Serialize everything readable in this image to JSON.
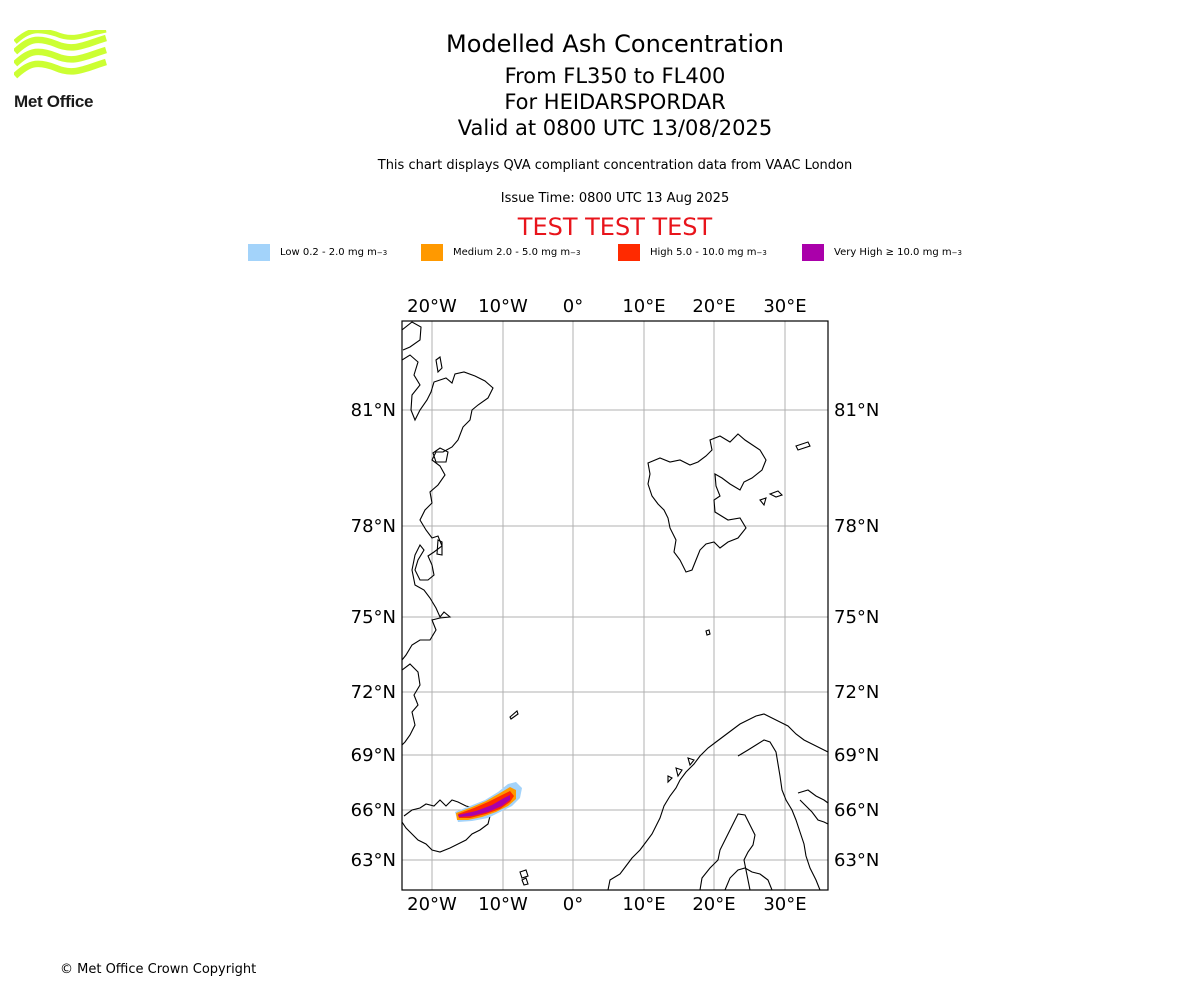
{
  "brand": {
    "name": "Met Office",
    "logo_color": "#ccff33"
  },
  "header": {
    "title": "Modelled Ash Concentration",
    "flight_levels": "From FL350 to FL400",
    "volcano": "For HEIDARSPORDAR",
    "valid": "Valid at 0800 UTC 13/08/2025",
    "description": "This chart displays QVA compliant concentration data from VAAC London",
    "issue_time": "Issue Time: 0800 UTC 13 Aug 2025",
    "test_banner": "TEST TEST TEST"
  },
  "legend": [
    {
      "label": "Low 0.2 - 2.0 mg m",
      "unit_sup": "−3",
      "color": "#a3d3fa"
    },
    {
      "label": "Medium 2.0 - 5.0 mg m",
      "unit_sup": "−3",
      "color": "#ff9900"
    },
    {
      "label": "High 5.0 - 10.0 mg m",
      "unit_sup": "−3",
      "color": "#ff2a00"
    },
    {
      "label": "Very High  ≥  10.0 mg m",
      "unit_sup": "−3",
      "color": "#aa00aa"
    }
  ],
  "map": {
    "lon_ticks": [
      "20°W",
      "10°W",
      "0°",
      "10°E",
      "20°E",
      "30°E"
    ],
    "lat_ticks": [
      "81°N",
      "78°N",
      "75°N",
      "72°N",
      "69°N",
      "66°N",
      "63°N"
    ],
    "coastline_color": "#000000",
    "grid_color": "#b0b0b0"
  },
  "footer": {
    "copyright": "© Met Office Crown Copyright"
  }
}
